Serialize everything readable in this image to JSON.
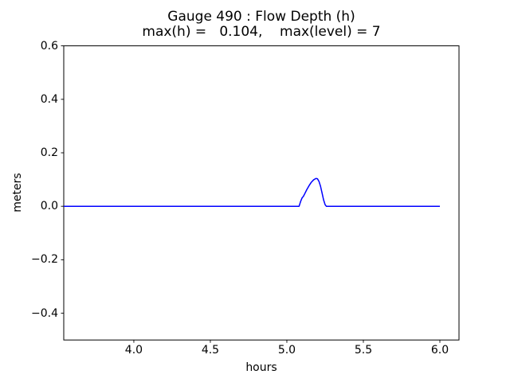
{
  "chart_data": {
    "type": "line",
    "title": "Gauge 490 : Flow Depth (h)",
    "subtitle": "max(h) =   0.104,    max(level) = 7",
    "xlabel": "hours",
    "ylabel": "meters",
    "xlim": [
      3.542,
      6.125
    ],
    "ylim": [
      -0.5,
      0.6
    ],
    "xticks": [
      4.0,
      4.5,
      5.0,
      5.5,
      6.0
    ],
    "xticklabels": [
      "4.0",
      "4.5",
      "5.0",
      "5.5",
      "6.0"
    ],
    "yticks": [
      0.6,
      0.4,
      0.2,
      0.0,
      -0.2,
      -0.4
    ],
    "yticklabels": [
      "0.6",
      "0.4",
      "0.2",
      "0.0",
      "−0.2",
      "−0.4"
    ],
    "grid": false,
    "legend": null,
    "max_h": 0.104,
    "max_level": 7,
    "series": [
      {
        "name": "flow-depth-h",
        "color": "#0000ff",
        "linewidth": 1.5,
        "points": [
          [
            3.542,
            0.0
          ],
          [
            5.08,
            0.0
          ],
          [
            5.09,
            0.018
          ],
          [
            5.1,
            0.032
          ],
          [
            5.108,
            0.037
          ],
          [
            5.118,
            0.048
          ],
          [
            5.13,
            0.062
          ],
          [
            5.145,
            0.077
          ],
          [
            5.16,
            0.09
          ],
          [
            5.175,
            0.099
          ],
          [
            5.19,
            0.104
          ],
          [
            5.2,
            0.103
          ],
          [
            5.21,
            0.093
          ],
          [
            5.22,
            0.075
          ],
          [
            5.23,
            0.05
          ],
          [
            5.24,
            0.024
          ],
          [
            5.25,
            0.006
          ],
          [
            5.258,
            0.0
          ],
          [
            6.0,
            0.0
          ]
        ]
      }
    ]
  },
  "colors": {
    "line": "#0000ff",
    "axis": "#000000",
    "background": "#ffffff"
  }
}
